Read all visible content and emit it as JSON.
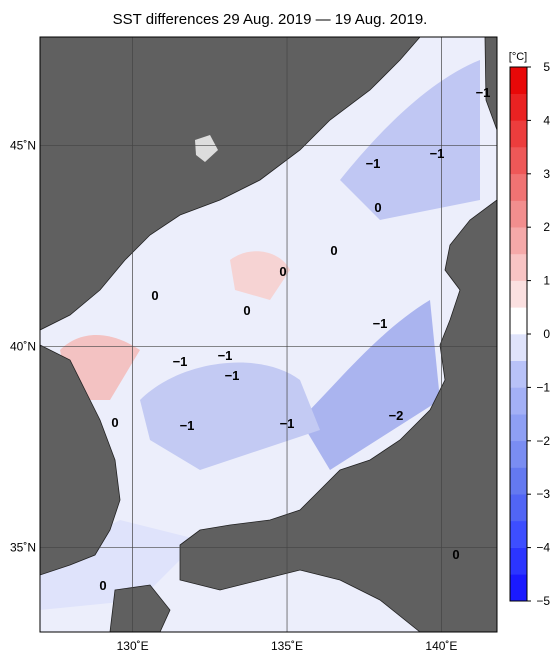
{
  "title": "SST differences 29 Aug. 2019 — 19 Aug. 2019.",
  "map": {
    "lon_lim": [
      127,
      141.8
    ],
    "lat_lim": [
      32.9,
      47.7
    ],
    "lon_ticks": [
      {
        "value": 130,
        "label": "130˚E"
      },
      {
        "value": 135,
        "label": "135˚E"
      },
      {
        "value": 140,
        "label": "140˚E"
      }
    ],
    "lat_ticks": [
      {
        "value": 35,
        "label": "35˚N"
      },
      {
        "value": 40,
        "label": "40˚N"
      },
      {
        "value": 45,
        "label": "45˚N"
      }
    ],
    "contour_labels": [
      "−1",
      "−1",
      "−1",
      "0",
      "0",
      "0",
      "0",
      "0",
      "−1",
      "−1",
      "−1",
      "−1",
      "−2",
      "−1",
      "−1",
      "0",
      "0",
      "0"
    ]
  },
  "colorbar": {
    "unit": "[°C]",
    "lim": [
      -5,
      5
    ],
    "ticks": [
      5,
      4,
      3,
      2,
      1,
      0,
      {
        "value": -1,
        "label": "−1"
      },
      {
        "value": -2,
        "label": "−2"
      },
      {
        "value": -3,
        "label": "−3"
      },
      {
        "value": -4,
        "label": "−4"
      },
      {
        "value": -5,
        "label": "−5"
      }
    ],
    "colors": [
      "#1a1aff",
      "#2b35ff",
      "#3d4eff",
      "#5165f5",
      "#6479f0",
      "#7a8df2",
      "#8e9ff4",
      "#a3b0f6",
      "#b8c2f8",
      "#dfe3fb",
      "#ffffff",
      "#fbe0e0",
      "#f8c4c4",
      "#f5a9a9",
      "#f28e8e",
      "#f07373",
      "#ee5858",
      "#ec3d3d",
      "#ea2222",
      "#e80808"
    ]
  }
}
